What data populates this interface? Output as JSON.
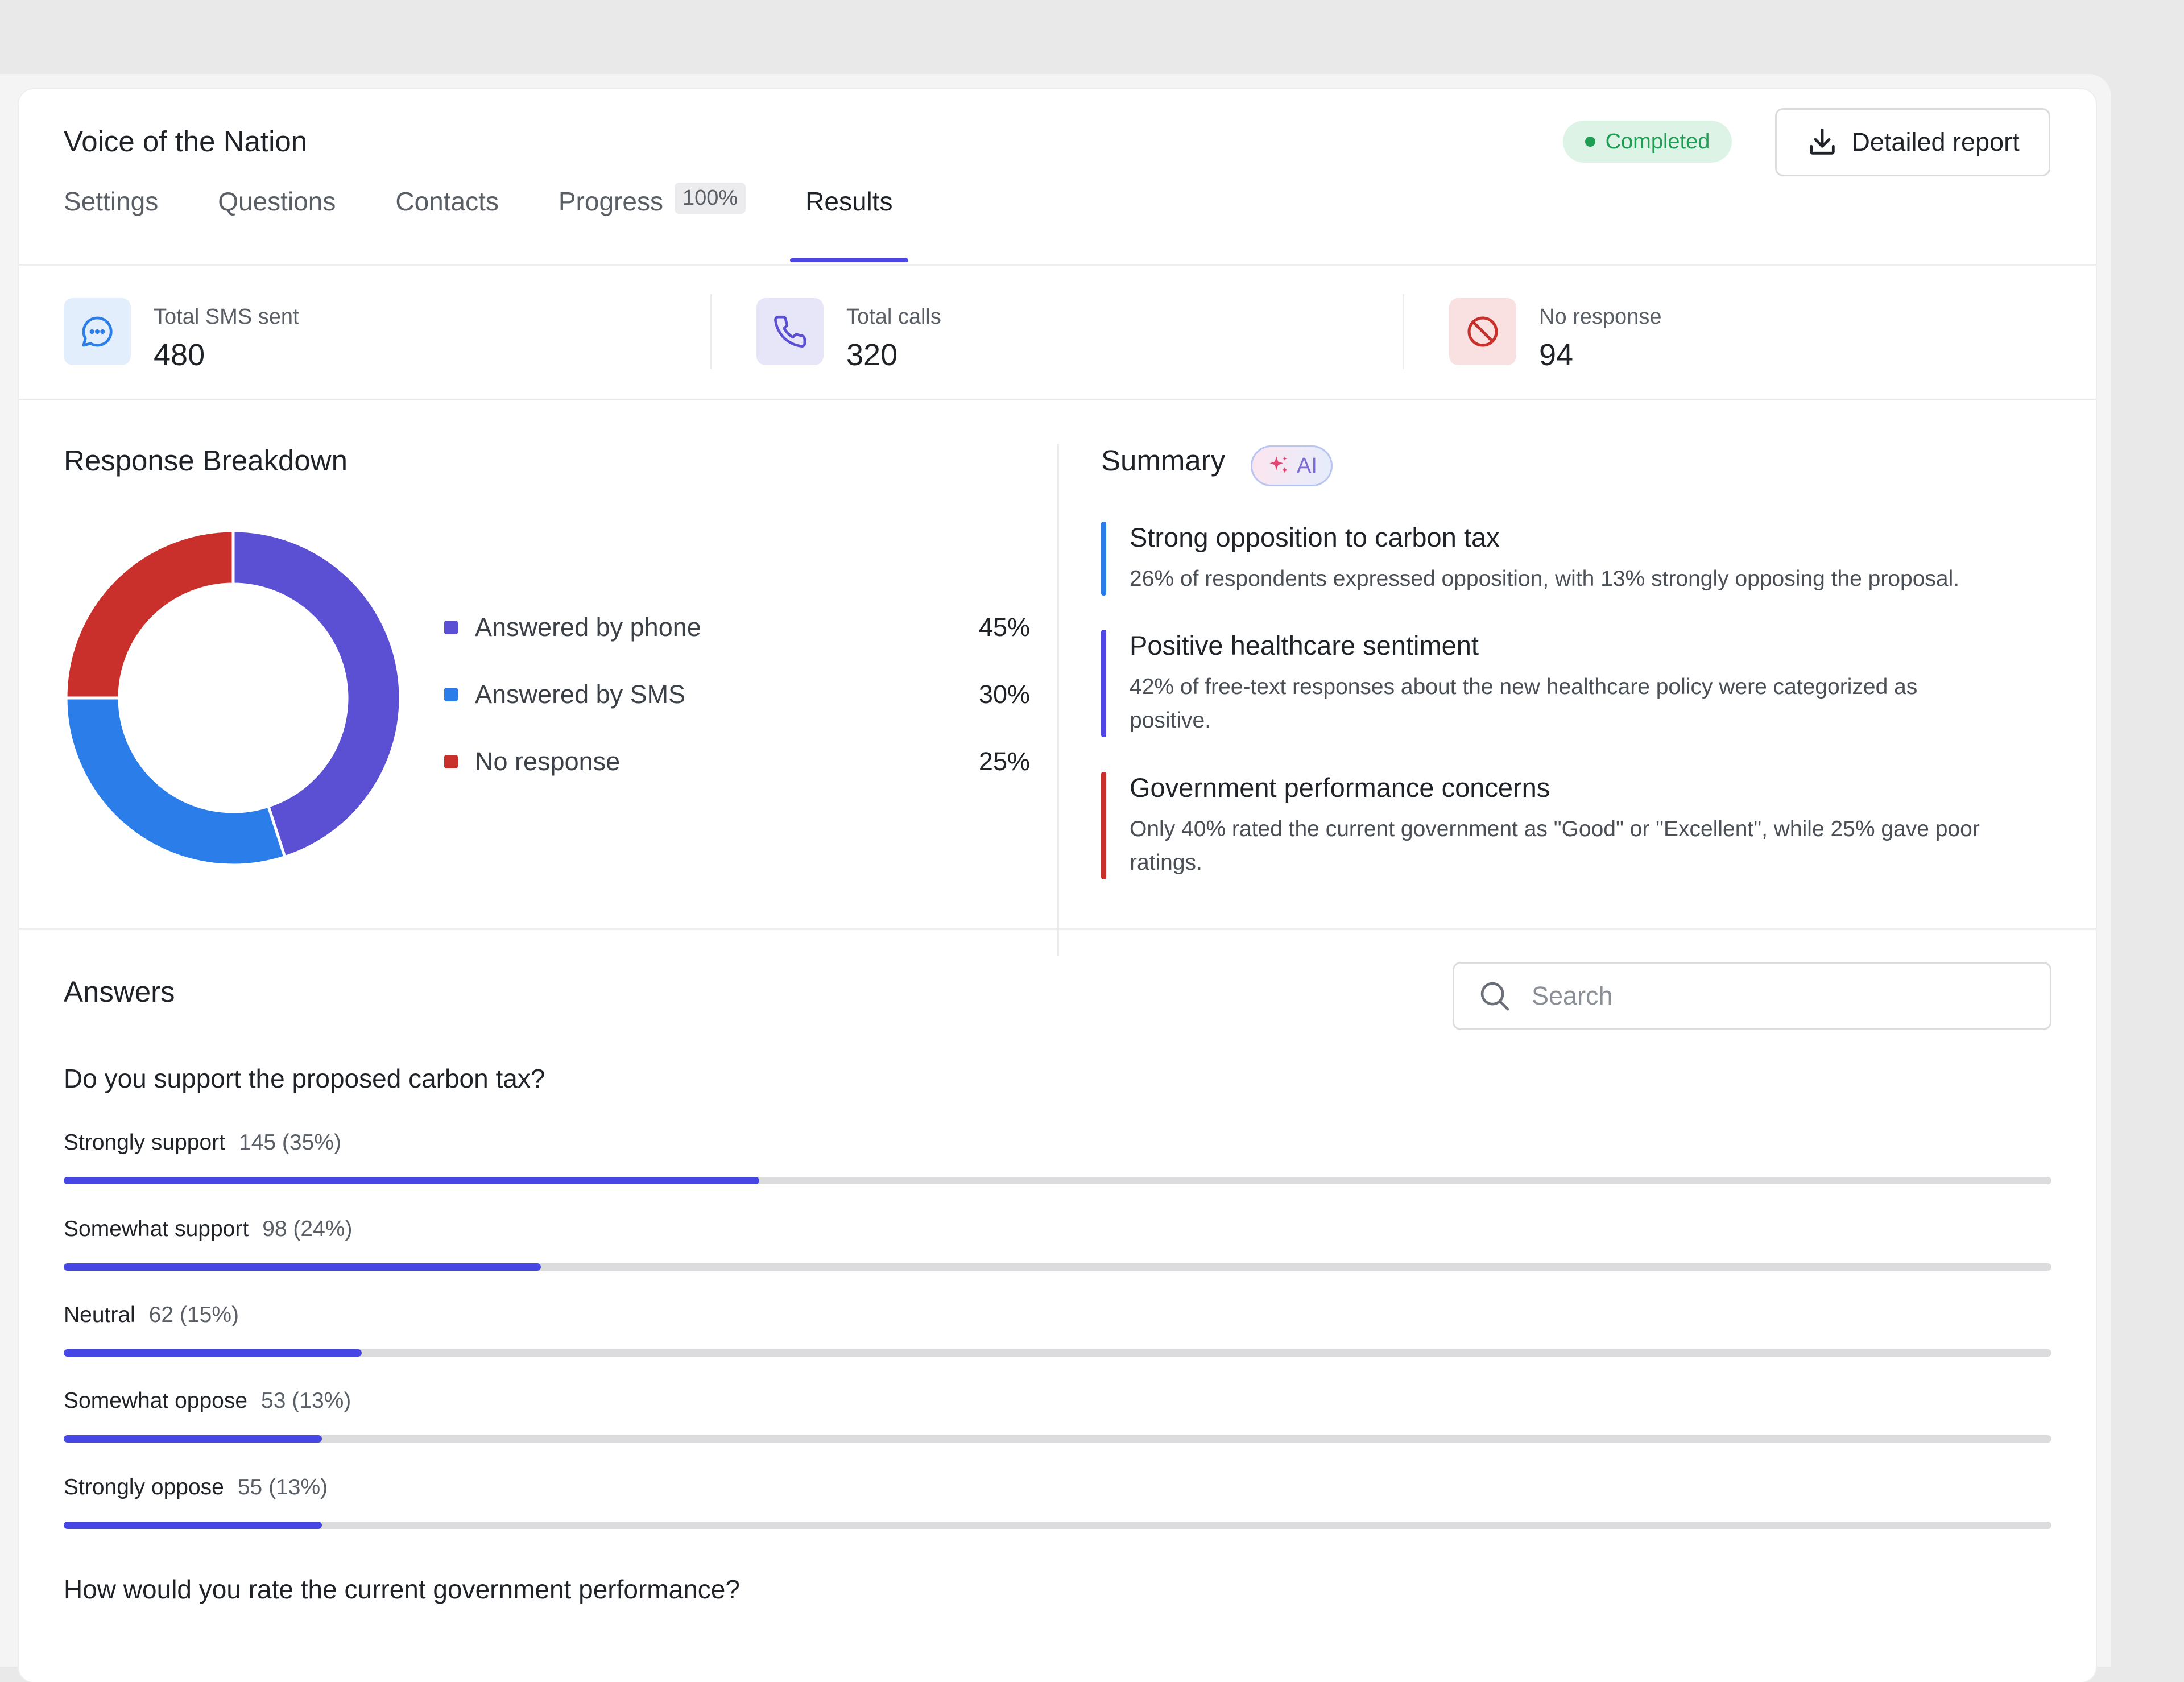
{
  "survey": {
    "title": "Voice of the Nation",
    "status": "Completed",
    "report_button": "Detailed report"
  },
  "tabs": [
    {
      "label": "Settings"
    },
    {
      "label": "Questions"
    },
    {
      "label": "Contacts"
    },
    {
      "label": "Progress",
      "badge": "100%"
    },
    {
      "label": "Results",
      "active": true
    }
  ],
  "stats": [
    {
      "label": "Total SMS sent",
      "value": "480",
      "icon": "chat-icon",
      "color": "#2b7de9"
    },
    {
      "label": "Total calls",
      "value": "320",
      "icon": "phone-icon",
      "color": "#5b4fd4"
    },
    {
      "label": "No response",
      "value": "94",
      "icon": "block-icon",
      "color": "#c9302c"
    }
  ],
  "breakdown": {
    "title": "Response Breakdown",
    "legend": [
      {
        "label": "Answered by phone",
        "pct": "45%",
        "color": "#5b4fd4"
      },
      {
        "label": "Answered by SMS",
        "pct": "30%",
        "color": "#2b7de9"
      },
      {
        "label": "No response",
        "pct": "25%",
        "color": "#c9302c"
      }
    ]
  },
  "chart_data": {
    "type": "pie",
    "categories": [
      "Answered by phone",
      "Answered by SMS",
      "No response"
    ],
    "values": [
      45,
      30,
      25
    ],
    "colors": [
      "#5b4fd4",
      "#2b7de9",
      "#c9302c"
    ],
    "title": "Response Breakdown"
  },
  "summary": {
    "title": "Summary",
    "badge": "AI",
    "insights": [
      {
        "title": "Strong opposition to carbon tax",
        "body": "26% of respondents expressed opposition, with 13% strongly opposing the proposal.",
        "color": "#2b7de9"
      },
      {
        "title": "Positive healthcare sentiment",
        "body": "42% of free-text responses about the new healthcare policy were categorized as positive.",
        "color": "#4f46e5"
      },
      {
        "title": "Government performance concerns",
        "body": "Only 40% rated the current government as \"Good\" or \"Excellent\", while 25% gave poor ratings.",
        "color": "#c9302c"
      }
    ]
  },
  "answers": {
    "title": "Answers",
    "search_placeholder": "Search",
    "questions": [
      {
        "text": "Do you support the proposed carbon tax?",
        "options": [
          {
            "label": "Strongly support",
            "count": "145 (35%)",
            "fraction": 0.35
          },
          {
            "label": "Somewhat support",
            "count": "98 (24%)",
            "fraction": 0.24
          },
          {
            "label": "Neutral",
            "count": "62 (15%)",
            "fraction": 0.15
          },
          {
            "label": "Somewhat oppose",
            "count": "53 (13%)",
            "fraction": 0.13
          },
          {
            "label": "Strongly oppose",
            "count": "55 (13%)",
            "fraction": 0.13
          }
        ]
      },
      {
        "text": "How would you rate the current government performance?"
      }
    ]
  }
}
